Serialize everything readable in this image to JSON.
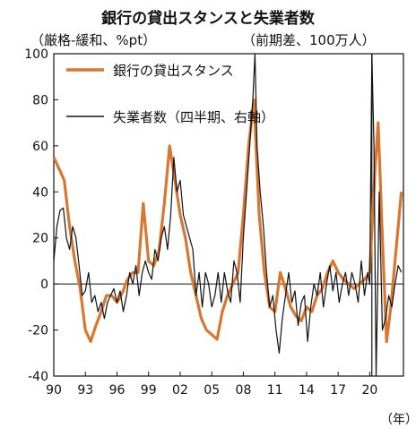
{
  "chart_data": {
    "type": "line",
    "title": "銀行の貸出スタンスと失業者数",
    "left_axis_label": "（厳格-緩和、%pt）",
    "right_axis_label": "（前期差、100万人）",
    "x_unit": "（年）",
    "ylim": [
      -40,
      100
    ],
    "y_ticks": [
      "100",
      "80",
      "60",
      "40",
      "20",
      "0",
      "-20",
      "-40"
    ],
    "x_ticks": [
      "90",
      "93",
      "96",
      "99",
      "02",
      "05",
      "08",
      "11",
      "14",
      "17",
      "20"
    ],
    "colors": {
      "bank": "#d9762f",
      "unemp": "#111111",
      "vline": "#111111"
    },
    "vline_year": 2020.2,
    "series": [
      {
        "name": "銀行の貸出スタンス",
        "values": [
          [
            1990.0,
            55
          ],
          [
            1990.5,
            50
          ],
          [
            1991.0,
            45
          ],
          [
            1991.5,
            25
          ],
          [
            1992.0,
            10
          ],
          [
            1992.5,
            -2
          ],
          [
            1993.0,
            -20
          ],
          [
            1993.5,
            -25
          ],
          [
            1994.0,
            -18
          ],
          [
            1994.5,
            -12
          ],
          [
            1995.0,
            -5
          ],
          [
            1995.5,
            -5
          ],
          [
            1996.0,
            -8
          ],
          [
            1996.5,
            -4
          ],
          [
            1997.0,
            2
          ],
          [
            1997.5,
            5
          ],
          [
            1998.0,
            5
          ],
          [
            1998.5,
            35
          ],
          [
            1999.0,
            10
          ],
          [
            1999.5,
            8
          ],
          [
            2000.0,
            15
          ],
          [
            2000.5,
            35
          ],
          [
            2001.0,
            60
          ],
          [
            2001.5,
            45
          ],
          [
            2002.0,
            30
          ],
          [
            2002.5,
            20
          ],
          [
            2003.0,
            5
          ],
          [
            2003.5,
            -5
          ],
          [
            2004.0,
            -15
          ],
          [
            2004.5,
            -20
          ],
          [
            2005.0,
            -22
          ],
          [
            2005.5,
            -24
          ],
          [
            2006.0,
            -12
          ],
          [
            2006.5,
            -5
          ],
          [
            2007.0,
            0
          ],
          [
            2007.5,
            5
          ],
          [
            2008.0,
            30
          ],
          [
            2008.5,
            60
          ],
          [
            2009.0,
            80
          ],
          [
            2009.5,
            30
          ],
          [
            2010.0,
            5
          ],
          [
            2010.5,
            -10
          ],
          [
            2011.0,
            -12
          ],
          [
            2011.5,
            5
          ],
          [
            2012.0,
            -2
          ],
          [
            2012.5,
            -10
          ],
          [
            2013.0,
            -14
          ],
          [
            2013.5,
            -16
          ],
          [
            2014.0,
            -10
          ],
          [
            2014.5,
            -12
          ],
          [
            2015.0,
            -5
          ],
          [
            2015.5,
            -2
          ],
          [
            2016.0,
            5
          ],
          [
            2016.5,
            10
          ],
          [
            2017.0,
            5
          ],
          [
            2017.5,
            2
          ],
          [
            2018.0,
            0
          ],
          [
            2018.5,
            -2
          ],
          [
            2019.0,
            0
          ],
          [
            2019.5,
            2
          ],
          [
            2020.0,
            5
          ],
          [
            2020.5,
            50
          ],
          [
            2020.8,
            70
          ],
          [
            2021.2,
            20
          ],
          [
            2021.6,
            -25
          ],
          [
            2022.0,
            -10
          ],
          [
            2022.5,
            15
          ],
          [
            2023.0,
            40
          ]
        ]
      },
      {
        "name": "失業者数（四半期、右軸）",
        "values": [
          [
            1990.0,
            10
          ],
          [
            1990.3,
            25
          ],
          [
            1990.6,
            32
          ],
          [
            1990.9,
            33
          ],
          [
            1991.2,
            20
          ],
          [
            1991.5,
            15
          ],
          [
            1991.8,
            25
          ],
          [
            1992.1,
            20
          ],
          [
            1992.4,
            8
          ],
          [
            1992.7,
            -5
          ],
          [
            1993.0,
            -3
          ],
          [
            1993.3,
            5
          ],
          [
            1993.6,
            -8
          ],
          [
            1993.9,
            -5
          ],
          [
            1994.2,
            -12
          ],
          [
            1994.5,
            -8
          ],
          [
            1994.8,
            -15
          ],
          [
            1995.1,
            -8
          ],
          [
            1995.4,
            -5
          ],
          [
            1995.7,
            -2
          ],
          [
            1996.0,
            -8
          ],
          [
            1996.3,
            -3
          ],
          [
            1996.6,
            -12
          ],
          [
            1996.9,
            -5
          ],
          [
            1997.2,
            5
          ],
          [
            1997.5,
            0
          ],
          [
            1997.8,
            8
          ],
          [
            1998.1,
            -5
          ],
          [
            1998.4,
            5
          ],
          [
            1998.7,
            10
          ],
          [
            1999.0,
            5
          ],
          [
            1999.3,
            2
          ],
          [
            1999.6,
            15
          ],
          [
            1999.9,
            10
          ],
          [
            2000.2,
            20
          ],
          [
            2000.5,
            25
          ],
          [
            2000.8,
            15
          ],
          [
            2001.1,
            30
          ],
          [
            2001.4,
            55
          ],
          [
            2001.7,
            40
          ],
          [
            2002.0,
            45
          ],
          [
            2002.3,
            30
          ],
          [
            2002.6,
            25
          ],
          [
            2002.9,
            20
          ],
          [
            2003.2,
            15
          ],
          [
            2003.5,
            -5
          ],
          [
            2003.8,
            5
          ],
          [
            2004.1,
            -10
          ],
          [
            2004.4,
            5
          ],
          [
            2004.7,
            0
          ],
          [
            2005.0,
            -10
          ],
          [
            2005.3,
            -5
          ],
          [
            2005.6,
            5
          ],
          [
            2005.9,
            -8
          ],
          [
            2006.2,
            5
          ],
          [
            2006.5,
            -3
          ],
          [
            2006.8,
            -8
          ],
          [
            2007.1,
            10
          ],
          [
            2007.4,
            5
          ],
          [
            2007.7,
            -8
          ],
          [
            2008.0,
            20
          ],
          [
            2008.3,
            40
          ],
          [
            2008.6,
            60
          ],
          [
            2008.9,
            80
          ],
          [
            2009.1,
            100
          ],
          [
            2009.3,
            60
          ],
          [
            2009.6,
            40
          ],
          [
            2009.9,
            25
          ],
          [
            2010.2,
            5
          ],
          [
            2010.5,
            -10
          ],
          [
            2010.8,
            -5
          ],
          [
            2011.1,
            -20
          ],
          [
            2011.4,
            -30
          ],
          [
            2011.7,
            -15
          ],
          [
            2012.0,
            -5
          ],
          [
            2012.3,
            5
          ],
          [
            2012.6,
            -8
          ],
          [
            2012.9,
            -3
          ],
          [
            2013.2,
            -18
          ],
          [
            2013.5,
            -8
          ],
          [
            2013.8,
            -5
          ],
          [
            2014.1,
            -25
          ],
          [
            2014.4,
            -10
          ],
          [
            2014.7,
            0
          ],
          [
            2015.0,
            -5
          ],
          [
            2015.3,
            5
          ],
          [
            2015.6,
            -10
          ],
          [
            2015.9,
            0
          ],
          [
            2016.2,
            8
          ],
          [
            2016.5,
            -3
          ],
          [
            2016.8,
            5
          ],
          [
            2017.1,
            -8
          ],
          [
            2017.4,
            0
          ],
          [
            2017.7,
            5
          ],
          [
            2018.0,
            -5
          ],
          [
            2018.3,
            5
          ],
          [
            2018.6,
            0
          ],
          [
            2018.9,
            -8
          ],
          [
            2019.2,
            10
          ],
          [
            2019.5,
            -5
          ],
          [
            2019.8,
            5
          ],
          [
            2020.0,
            0
          ],
          [
            2020.2,
            100
          ],
          [
            2020.4,
            60
          ],
          [
            2020.6,
            -40
          ],
          [
            2020.9,
            40
          ],
          [
            2021.2,
            -20
          ],
          [
            2021.5,
            -15
          ],
          [
            2021.8,
            -5
          ],
          [
            2022.1,
            -10
          ],
          [
            2022.4,
            0
          ],
          [
            2022.7,
            8
          ],
          [
            2023.0,
            5
          ]
        ]
      }
    ]
  }
}
